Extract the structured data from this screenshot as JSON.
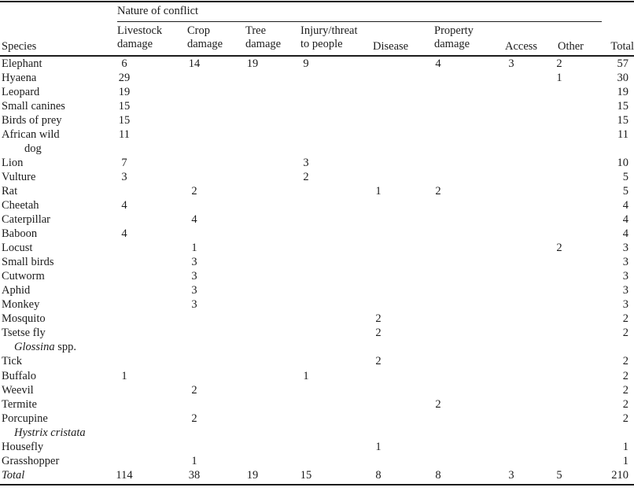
{
  "page": {
    "background": "#ffffff",
    "text_color": "#1c1c1c"
  },
  "table": {
    "spanner_label": "Nature of conflict",
    "species_header": "Species",
    "columns": [
      {
        "id": "livestock",
        "label": "Livestock damage",
        "lines": [
          "Livestock",
          "damage"
        ]
      },
      {
        "id": "crop",
        "label": "Crop damage",
        "lines": [
          "Crop",
          "damage"
        ]
      },
      {
        "id": "tree",
        "label": "Tree damage",
        "lines": [
          "Tree",
          "damage"
        ]
      },
      {
        "id": "injury",
        "label": "Injury/threat to people",
        "lines": [
          "Injury/threat",
          "to people"
        ]
      },
      {
        "id": "disease",
        "label": "Disease",
        "lines": [
          "Disease"
        ]
      },
      {
        "id": "property",
        "label": "Property damage",
        "lines": [
          "Property",
          "damage"
        ]
      },
      {
        "id": "access",
        "label": "Access",
        "lines": [
          "Access"
        ]
      },
      {
        "id": "other",
        "label": "Other",
        "lines": [
          "Other"
        ]
      },
      {
        "id": "total",
        "label": "Total",
        "lines": [
          "Total"
        ]
      }
    ],
    "rows": [
      {
        "species": "Elephant",
        "values": [
          "6",
          "14",
          "19",
          "9",
          "",
          "4",
          "3",
          "2",
          "57"
        ]
      },
      {
        "species": "Hyaena",
        "values": [
          "29",
          "",
          "",
          "",
          "",
          "",
          "",
          "1",
          "30"
        ]
      },
      {
        "species": "Leopard",
        "values": [
          "19",
          "",
          "",
          "",
          "",
          "",
          "",
          "",
          "19"
        ]
      },
      {
        "species": "Small canines",
        "values": [
          "15",
          "",
          "",
          "",
          "",
          "",
          "",
          "",
          "15"
        ]
      },
      {
        "species": "Birds of prey",
        "values": [
          "15",
          "",
          "",
          "",
          "",
          "",
          "",
          "",
          "15"
        ]
      },
      {
        "species": "African wild",
        "sub": [
          {
            "t": "dog",
            "i": false
          }
        ],
        "values": [
          "11",
          "",
          "",
          "",
          "",
          "",
          "",
          "",
          "11"
        ]
      },
      {
        "species": "Lion",
        "values": [
          "7",
          "",
          "",
          "3",
          "",
          "",
          "",
          "",
          "10"
        ]
      },
      {
        "species": "Vulture",
        "values": [
          "3",
          "",
          "",
          "2",
          "",
          "",
          "",
          "",
          "5"
        ]
      },
      {
        "species": "Rat",
        "values": [
          "",
          "2",
          "",
          "",
          "1",
          "2",
          "",
          "",
          "5"
        ]
      },
      {
        "species": "Cheetah",
        "values": [
          "4",
          "",
          "",
          "",
          "",
          "",
          "",
          "",
          "4"
        ]
      },
      {
        "species": "Caterpillar",
        "values": [
          "",
          "4",
          "",
          "",
          "",
          "",
          "",
          "",
          "4"
        ]
      },
      {
        "species": "Baboon",
        "values": [
          "4",
          "",
          "",
          "",
          "",
          "",
          "",
          "",
          "4"
        ]
      },
      {
        "species": "Locust",
        "values": [
          "",
          "1",
          "",
          "",
          "",
          "",
          "",
          "2",
          "3"
        ]
      },
      {
        "species": "Small birds",
        "values": [
          "",
          "3",
          "",
          "",
          "",
          "",
          "",
          "",
          "3"
        ]
      },
      {
        "species": "Cutworm",
        "values": [
          "",
          "3",
          "",
          "",
          "",
          "",
          "",
          "",
          "3"
        ]
      },
      {
        "species": "Aphid",
        "values": [
          "",
          "3",
          "",
          "",
          "",
          "",
          "",
          "",
          "3"
        ]
      },
      {
        "species": "Monkey",
        "values": [
          "",
          "3",
          "",
          "",
          "",
          "",
          "",
          "",
          "3"
        ]
      },
      {
        "species": "Mosquito",
        "values": [
          "",
          "",
          "",
          "",
          "2",
          "",
          "",
          "",
          "2"
        ]
      },
      {
        "species": "Tsetse fly",
        "sub": [
          {
            "t": "Glossina",
            "i": true
          },
          {
            "t": " spp.",
            "i": false
          }
        ],
        "values": [
          "",
          "",
          "",
          "",
          "2",
          "",
          "",
          "",
          "2"
        ]
      },
      {
        "species": "Tick",
        "values": [
          "",
          "",
          "",
          "",
          "2",
          "",
          "",
          "",
          "2"
        ]
      },
      {
        "species": "Buffalo",
        "values": [
          "1",
          "",
          "",
          "1",
          "",
          "",
          "",
          "",
          "2"
        ]
      },
      {
        "species": "Weevil",
        "values": [
          "",
          "2",
          "",
          "",
          "",
          "",
          "",
          "",
          "2"
        ]
      },
      {
        "species": "Termite",
        "values": [
          "",
          "",
          "",
          "",
          "",
          "2",
          "",
          "",
          "2"
        ]
      },
      {
        "species": "Porcupine",
        "sub": [
          {
            "t": "Hystrix cristata",
            "i": true
          }
        ],
        "values": [
          "",
          "2",
          "",
          "",
          "",
          "",
          "",
          "",
          "2"
        ]
      },
      {
        "species": "Housefly",
        "values": [
          "",
          "",
          "",
          "",
          "1",
          "",
          "",
          "",
          "1"
        ]
      },
      {
        "species": "Grasshopper",
        "values": [
          "",
          "1",
          "",
          "",
          "",
          "",
          "",
          "",
          "1"
        ]
      },
      {
        "species": "Total",
        "italic": true,
        "values": [
          "114",
          "38",
          "19",
          "15",
          "8",
          "8",
          "3",
          "5",
          "210"
        ]
      }
    ]
  }
}
